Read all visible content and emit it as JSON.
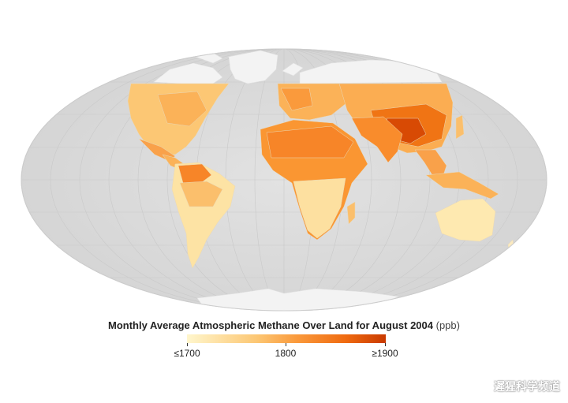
{
  "map": {
    "title": "Monthly Average Atmospheric Methane Over Land for August 2004",
    "unit": "(ppb)",
    "projection": "mollweide",
    "colors": {
      "ocean": "#dcdcdc",
      "no_data_land": "#f2f2f2",
      "graticule": "#c8c8c8",
      "scale_low": "#fff6cc",
      "scale_mid": "#fa9a3c",
      "scale_high": "#c93a00"
    }
  },
  "legend": {
    "ticks": [
      {
        "label": "≤1700"
      },
      {
        "label": "1800"
      },
      {
        "label": "≥1900"
      }
    ]
  },
  "watermark": {
    "text": "遲猩科学频道"
  }
}
